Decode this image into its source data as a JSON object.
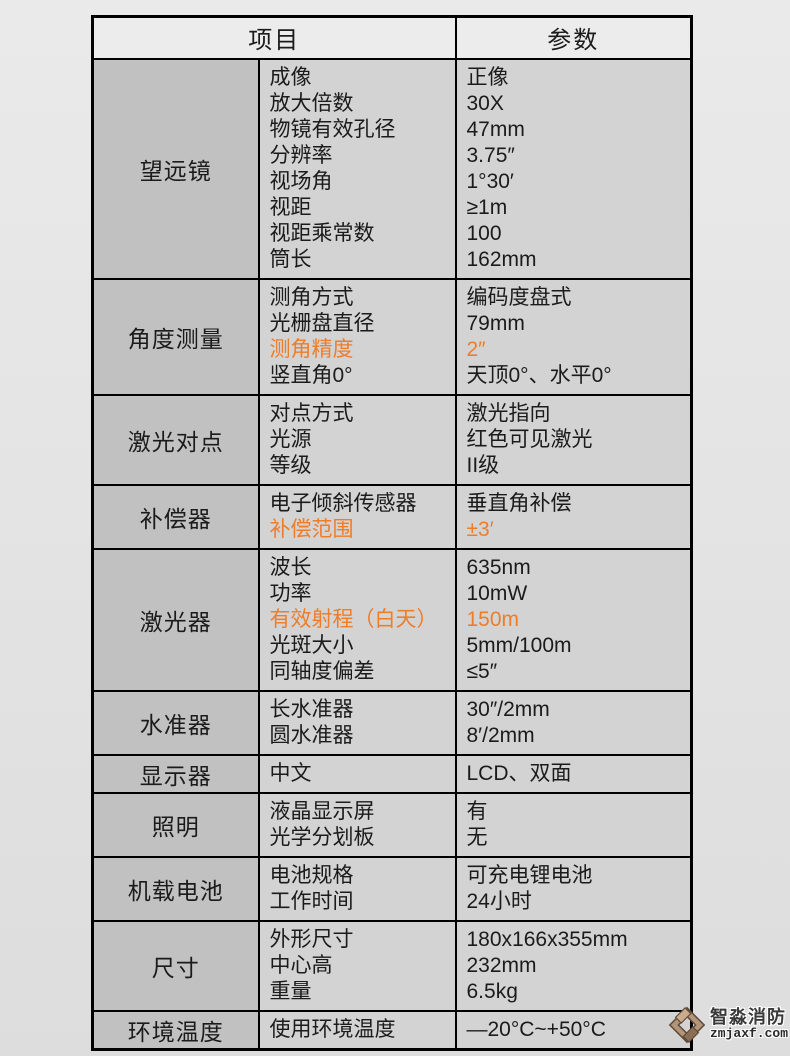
{
  "colors": {
    "accent": "#ee7d2a",
    "category_bg": "#c1c1c1",
    "cell_bg": "#d3d3d3",
    "header_bg": "#ececec",
    "logo_tan": "#b3957a"
  },
  "table": {
    "header": {
      "item": "项目",
      "param": "参数"
    },
    "rows": [
      {
        "category": "望远镜",
        "specs": [
          {
            "label": "成像",
            "value": "正像"
          },
          {
            "label": "放大倍数",
            "value": "30X"
          },
          {
            "label": "物镜有效孔径",
            "value": "47mm"
          },
          {
            "label": "分辨率",
            "value": "3.75″"
          },
          {
            "label": "视场角",
            "value": "1°30′"
          },
          {
            "label": "视距",
            "value": "≥1m"
          },
          {
            "label": "视距乘常数",
            "value": "100"
          },
          {
            "label": "筒长",
            "value": "162mm"
          }
        ]
      },
      {
        "category": "角度测量",
        "specs": [
          {
            "label": "测角方式",
            "value": "编码度盘式"
          },
          {
            "label": "光栅盘直径",
            "value": "79mm"
          },
          {
            "label": "测角精度",
            "value": "2″",
            "highlight": true
          },
          {
            "label": "竖直角0°",
            "value": "天顶0°、水平0°"
          }
        ]
      },
      {
        "category": "激光对点",
        "specs": [
          {
            "label": "对点方式",
            "value": "激光指向"
          },
          {
            "label": "光源",
            "value": "红色可见激光"
          },
          {
            "label": "等级",
            "value": "II级"
          }
        ]
      },
      {
        "category": "补偿器",
        "specs": [
          {
            "label": "电子倾斜传感器",
            "value": "垂直角补偿"
          },
          {
            "label": "补偿范围",
            "value": "±3′",
            "highlight": true
          }
        ]
      },
      {
        "category": "激光器",
        "specs": [
          {
            "label": "波长",
            "value": "635nm"
          },
          {
            "label": "功率",
            "value": "10mW"
          },
          {
            "label": "有效射程（白天）",
            "value": "150m",
            "highlight": true
          },
          {
            "label": "光斑大小",
            "value": "5mm/100m"
          },
          {
            "label": "同轴度偏差",
            "value": "≤5″"
          }
        ]
      },
      {
        "category": "水准器",
        "specs": [
          {
            "label": "长水准器",
            "value": "30″/2mm"
          },
          {
            "label": "圆水准器",
            "value": "8′/2mm"
          }
        ]
      },
      {
        "category": "显示器",
        "specs": [
          {
            "label": "中文",
            "value": "LCD、双面"
          }
        ]
      },
      {
        "category": "照明",
        "specs": [
          {
            "label": "液晶显示屏",
            "value": "有"
          },
          {
            "label": "光学分划板",
            "value": "无"
          }
        ]
      },
      {
        "category": "机载电池",
        "specs": [
          {
            "label": "电池规格",
            "value": "可充电锂电池"
          },
          {
            "label": "工作时间",
            "value": "24小时"
          }
        ]
      },
      {
        "category": "尺寸",
        "specs": [
          {
            "label": "外形尺寸",
            "value": "180x166x355mm"
          },
          {
            "label": "中心高",
            "value": "232mm"
          },
          {
            "label": "重量",
            "value": "6.5kg"
          }
        ]
      },
      {
        "category": "环境温度",
        "specs": [
          {
            "label": "使用环境温度",
            "value": "—20°C~+50°C"
          }
        ]
      }
    ]
  },
  "watermark": {
    "brand": "智淼消防",
    "site": "zmjaxf.com"
  }
}
